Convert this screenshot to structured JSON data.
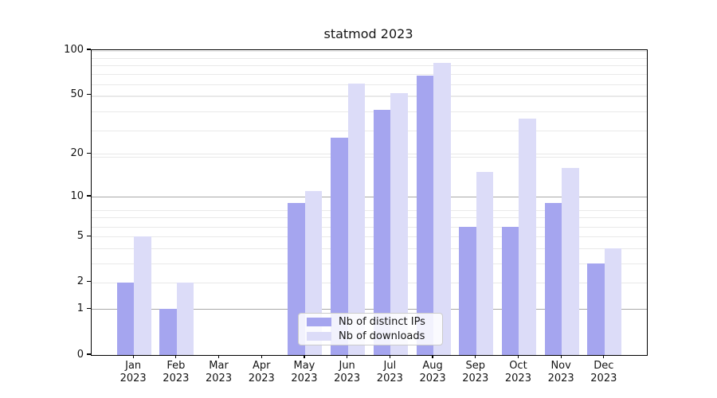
{
  "title": "statmod 2023",
  "legend": {
    "items": [
      {
        "label": "Nb of distinct IPs"
      },
      {
        "label": "Nb of downloads"
      }
    ]
  },
  "chart_data": {
    "type": "bar",
    "title": "statmod 2023",
    "categories": [
      "Jan",
      "Feb",
      "Mar",
      "Apr",
      "May",
      "Jun",
      "Jul",
      "Aug",
      "Sep",
      "Oct",
      "Nov",
      "Dec"
    ],
    "category_year_line": "2023",
    "series": [
      {
        "name": "Nb of distinct IPs",
        "color": "#a5a5ef",
        "values": [
          2,
          1,
          0,
          0,
          9,
          26,
          40,
          68,
          6,
          6,
          9,
          3
        ]
      },
      {
        "name": "Nb of downloads",
        "color": "#dcdcf8",
        "values": [
          5,
          2,
          0,
          0,
          11,
          60,
          52,
          82,
          15,
          35,
          16,
          4
        ]
      }
    ],
    "xlabel": "",
    "ylabel": "",
    "ylim": [
      0,
      100
    ],
    "yscale": "log1p",
    "yticks": [
      0,
      1,
      2,
      5,
      10,
      20,
      50,
      100
    ],
    "grid": {
      "strong_lines": [
        1,
        10
      ],
      "weak_lines": [
        2,
        3,
        4,
        5,
        6,
        7,
        8,
        19,
        20,
        29,
        39,
        49,
        50,
        59,
        69,
        79,
        89,
        99
      ]
    },
    "legend_position": "lower center inside",
    "bar_group": "side-by-side"
  }
}
